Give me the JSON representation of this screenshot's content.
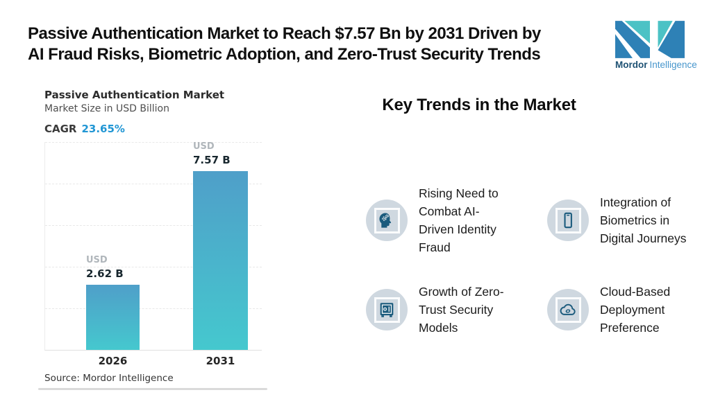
{
  "header": {
    "title": "Passive Authentication Market to Reach $7.57 Bn by 2031 Driven by\nAI Fraud Risks, Biometric Adoption, and Zero-Trust Security Trends",
    "logo": {
      "name_bold": "Mordor",
      "name_light": "Intelligence"
    }
  },
  "chart": {
    "title": "Passive Authentication Market",
    "subtitle": "Market Size in USD Billion",
    "cagr_label": "CAGR",
    "cagr_value": "23.65%",
    "source": "Source: Mordor Intelligence",
    "bars": [
      {
        "year": "2026",
        "currency": "USD",
        "value_label": "2.62 B"
      },
      {
        "year": "2031",
        "currency": "USD",
        "value_label": "7.57 B"
      }
    ]
  },
  "chart_data": {
    "type": "bar",
    "title": "Passive Authentication Market",
    "subtitle": "Market Size in USD Billion",
    "unit": "USD Billion",
    "cagr": "23.65%",
    "categories": [
      "2026",
      "2031"
    ],
    "values": [
      2.62,
      7.57
    ],
    "data_labels": [
      "USD 2.62 B",
      "USD 7.57 B"
    ],
    "ylim": [
      0,
      8.35
    ],
    "grid": "horizontal-dashed",
    "legend": "none",
    "source": "Source: Mordor Intelligence"
  },
  "trends": {
    "heading": "Key Trends in the Market",
    "items": [
      {
        "icon": "ai-head-icon",
        "label": "Rising Need to\nCombat AI-\nDriven Identity\nFraud"
      },
      {
        "icon": "smartphone-icon",
        "label": "Integration of\nBiometrics in\nDigital Journeys"
      },
      {
        "icon": "safe-vault-icon",
        "label": "Growth of Zero-\nTrust Security\nModels"
      },
      {
        "icon": "cloud-sync-icon",
        "label": "Cloud-Based\nDeployment\nPreference"
      }
    ]
  },
  "colors": {
    "accent_blue": "#2196d4",
    "bar_gradient_top": "#4f9fc9",
    "bar_gradient_bottom": "#45c8ce",
    "icon_blue": "#1b5b7d",
    "icon_circle_bg": "#cfd8e0",
    "logo_teal": "#4cc2c5",
    "logo_blue": "#2e81b6",
    "logo_text_dark": "#1d5173",
    "logo_text_light": "#4796cc"
  }
}
